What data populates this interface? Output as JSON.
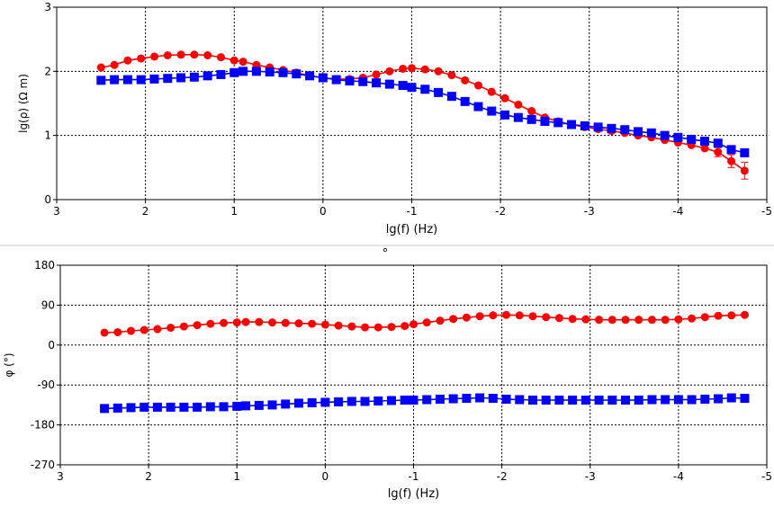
{
  "chart_data": [
    {
      "type": "line",
      "xlabel": "lg(f) (Hz)",
      "ylabel": "lg(ρ) (Ω m)",
      "xlim": [
        3,
        -5
      ],
      "ylim": [
        0,
        3
      ],
      "xticks": [
        "3",
        "2",
        "1",
        "0",
        "-1",
        "-2",
        "-3",
        "-4",
        "-5"
      ],
      "yticks": [
        "0",
        "1",
        "2",
        "3"
      ],
      "grid": true,
      "series": [
        {
          "color": "#ff0000",
          "marker": "circle",
          "x": [
            2.5,
            2.35,
            2.2,
            2.05,
            1.9,
            1.75,
            1.6,
            1.45,
            1.3,
            1.15,
            1.0,
            0.9,
            0.75,
            0.6,
            0.45,
            0.3,
            0.15,
            0.0,
            -0.15,
            -0.3,
            -0.45,
            -0.6,
            -0.75,
            -0.9,
            -1.0,
            -1.15,
            -1.3,
            -1.45,
            -1.6,
            -1.75,
            -1.9,
            -2.05,
            -2.2,
            -2.35,
            -2.5,
            -2.65,
            -2.8,
            -2.95,
            -3.1,
            -3.25,
            -3.4,
            -3.55,
            -3.7,
            -3.85,
            -4.0,
            -4.15,
            -4.3,
            -4.45,
            -4.6,
            -4.75
          ],
          "y": [
            2.06,
            2.1,
            2.17,
            2.2,
            2.23,
            2.25,
            2.26,
            2.26,
            2.25,
            2.22,
            2.17,
            2.15,
            2.1,
            2.06,
            2.02,
            1.98,
            1.93,
            1.9,
            1.88,
            1.88,
            1.9,
            1.95,
            2.0,
            2.04,
            2.05,
            2.03,
            2.0,
            1.94,
            1.86,
            1.78,
            1.68,
            1.58,
            1.48,
            1.38,
            1.28,
            1.22,
            1.17,
            1.13,
            1.1,
            1.07,
            1.04,
            1.0,
            0.97,
            0.93,
            0.89,
            0.85,
            0.8,
            0.74,
            0.6,
            0.45
          ],
          "error": [
            0,
            0,
            0,
            0,
            0,
            0,
            0,
            0,
            0,
            0,
            0,
            0,
            0,
            0,
            0,
            0,
            0,
            0,
            0,
            0,
            0,
            0,
            0,
            0,
            0,
            0,
            0,
            0,
            0,
            0,
            0,
            0,
            0,
            0,
            0,
            0,
            0,
            0,
            0,
            0,
            0,
            0,
            0,
            0,
            0,
            0,
            0,
            0.07,
            0.1,
            0.13
          ]
        },
        {
          "color": "#0000ff",
          "marker": "square",
          "x": [
            2.5,
            2.35,
            2.2,
            2.05,
            1.9,
            1.75,
            1.6,
            1.45,
            1.3,
            1.15,
            1.0,
            0.9,
            0.75,
            0.6,
            0.45,
            0.3,
            0.15,
            0.0,
            -0.15,
            -0.3,
            -0.45,
            -0.6,
            -0.75,
            -0.9,
            -1.0,
            -1.15,
            -1.3,
            -1.45,
            -1.6,
            -1.75,
            -1.9,
            -2.05,
            -2.2,
            -2.35,
            -2.5,
            -2.65,
            -2.8,
            -2.95,
            -3.1,
            -3.25,
            -3.4,
            -3.55,
            -3.7,
            -3.85,
            -4.0,
            -4.15,
            -4.3,
            -4.45,
            -4.6,
            -4.75
          ],
          "y": [
            1.86,
            1.87,
            1.87,
            1.87,
            1.88,
            1.89,
            1.9,
            1.91,
            1.93,
            1.95,
            1.98,
            2.0,
            2.0,
            1.99,
            1.98,
            1.96,
            1.93,
            1.9,
            1.87,
            1.85,
            1.84,
            1.82,
            1.8,
            1.78,
            1.75,
            1.72,
            1.67,
            1.61,
            1.53,
            1.45,
            1.38,
            1.32,
            1.28,
            1.25,
            1.22,
            1.2,
            1.17,
            1.15,
            1.13,
            1.11,
            1.09,
            1.06,
            1.04,
            1.0,
            0.97,
            0.94,
            0.91,
            0.88,
            0.78,
            0.73
          ]
        }
      ]
    },
    {
      "type": "line",
      "xlabel": "lg(f) (Hz)",
      "ylabel": "φ (°)",
      "top_mark": "°",
      "xlim": [
        3,
        -5
      ],
      "ylim": [
        -270,
        180
      ],
      "xticks": [
        "3",
        "2",
        "1",
        "0",
        "-1",
        "-2",
        "-3",
        "-4",
        "-5"
      ],
      "yticks": [
        "-270",
        "-180",
        "-90",
        "0",
        "90",
        "180"
      ],
      "grid": true,
      "series": [
        {
          "color": "#ff0000",
          "marker": "circle",
          "x": [
            2.5,
            2.35,
            2.2,
            2.05,
            1.9,
            1.75,
            1.6,
            1.45,
            1.3,
            1.15,
            1.0,
            0.9,
            0.75,
            0.6,
            0.45,
            0.3,
            0.15,
            0.0,
            -0.15,
            -0.3,
            -0.45,
            -0.6,
            -0.75,
            -0.9,
            -1.0,
            -1.15,
            -1.3,
            -1.45,
            -1.6,
            -1.75,
            -1.9,
            -2.05,
            -2.2,
            -2.35,
            -2.5,
            -2.65,
            -2.8,
            -2.95,
            -3.1,
            -3.25,
            -3.4,
            -3.55,
            -3.7,
            -3.85,
            -4.0,
            -4.15,
            -4.3,
            -4.45,
            -4.6,
            -4.75
          ],
          "y": [
            28,
            29,
            32,
            34,
            36,
            39,
            42,
            45,
            48,
            50,
            51,
            52,
            52,
            51,
            50,
            49,
            48,
            46,
            44,
            42,
            40,
            40,
            41,
            43,
            47,
            51,
            55,
            59,
            62,
            65,
            67,
            68,
            67,
            65,
            63,
            61,
            59,
            58,
            57,
            57,
            57,
            57,
            57,
            57,
            58,
            60,
            63,
            66,
            67,
            68
          ]
        },
        {
          "color": "#0000ff",
          "marker": "square",
          "x": [
            2.5,
            2.35,
            2.2,
            2.05,
            1.9,
            1.75,
            1.6,
            1.45,
            1.3,
            1.15,
            1.0,
            0.9,
            0.75,
            0.6,
            0.45,
            0.3,
            0.15,
            0.0,
            -0.15,
            -0.3,
            -0.45,
            -0.6,
            -0.75,
            -0.9,
            -1.0,
            -1.15,
            -1.3,
            -1.45,
            -1.6,
            -1.75,
            -1.9,
            -2.05,
            -2.2,
            -2.35,
            -2.5,
            -2.65,
            -2.8,
            -2.95,
            -3.1,
            -3.25,
            -3.4,
            -3.55,
            -3.7,
            -3.85,
            -4.0,
            -4.15,
            -4.3,
            -4.45,
            -4.6,
            -4.75
          ],
          "y": [
            -143,
            -142,
            -141,
            -140,
            -140,
            -140,
            -140,
            -140,
            -139,
            -139,
            -138,
            -137,
            -136,
            -135,
            -133,
            -131,
            -130,
            -129,
            -128,
            -127,
            -127,
            -126,
            -125,
            -124,
            -124,
            -123,
            -122,
            -121,
            -120,
            -119,
            -120,
            -122,
            -123,
            -124,
            -124,
            -124,
            -124,
            -124,
            -124,
            -124,
            -124,
            -124,
            -123,
            -123,
            -123,
            -123,
            -122,
            -121,
            -119,
            -120
          ]
        }
      ]
    }
  ]
}
